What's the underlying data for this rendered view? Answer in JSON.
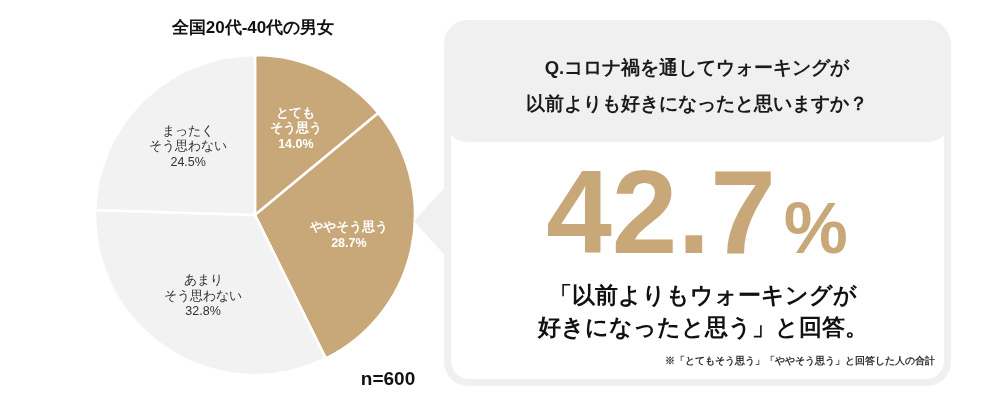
{
  "chart_data": [
    {
      "type": "pie",
      "title": "全国20代-40代の男女",
      "categories": [
        "とてもそう思う",
        "ややそう思う",
        "あまりそう思わない",
        "まったくそう思わない"
      ],
      "values": [
        14.0,
        28.7,
        32.8,
        24.5
      ],
      "colors": [
        "#c8a778",
        "#c8a778",
        "#f2f2f2",
        "#f2f2f2"
      ],
      "value_labels": [
        "14.0%",
        "28.7%",
        "32.8%",
        "24.5%"
      ],
      "annotations": [
        "n=600"
      ]
    },
    {
      "type": "other",
      "title": "Q.コロナ禍を通してウォーキングが以前よりも好きになったと思いますか？",
      "annotations": [
        "42.7%",
        "「以前よりもウォーキングが好きになったと思う」と回答。",
        "※「とてもそう思う」「ややそう思う」と回答した人の合計"
      ]
    }
  ]
}
